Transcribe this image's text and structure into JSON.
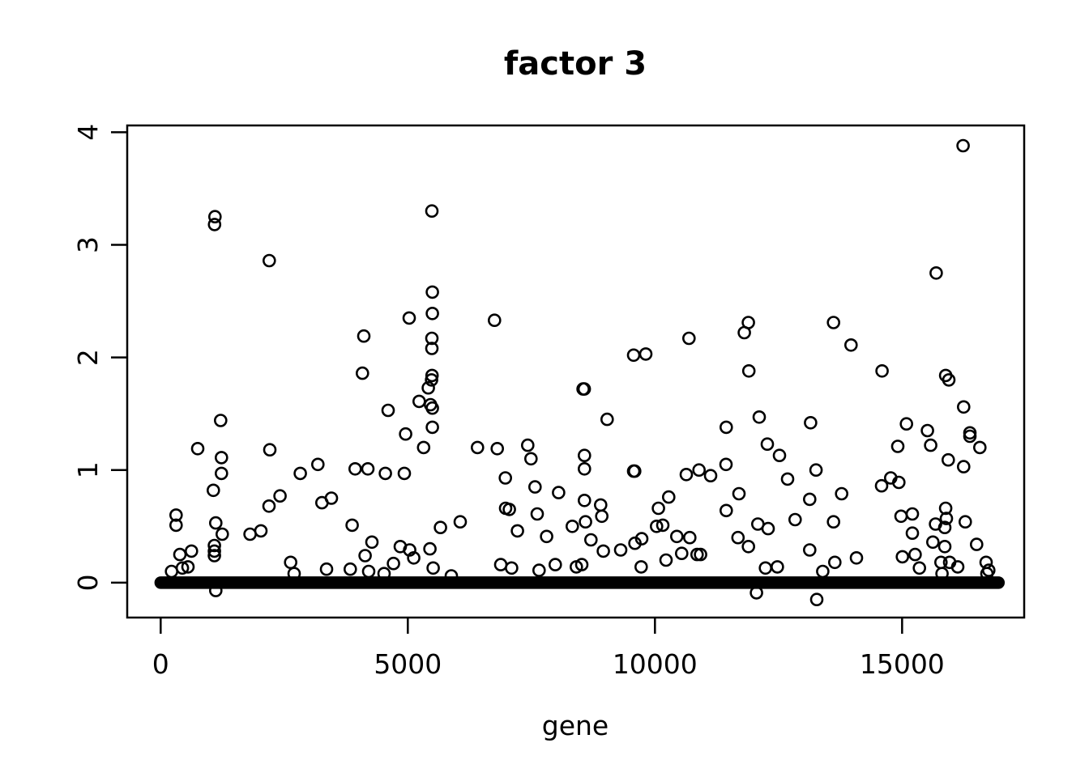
{
  "page": {
    "background": "#ffffff",
    "foreground": "#000000"
  },
  "chart_data": {
    "type": "scatter",
    "title": "factor 3",
    "xlabel": "gene",
    "ylabel": "",
    "grid": false,
    "legend": "none",
    "marker": {
      "shape": "open-circle",
      "color": "#000000",
      "radius_px": 7
    },
    "x_ticks": [
      0,
      5000,
      10000,
      15000
    ],
    "y_ticks": [
      0,
      1,
      2,
      3,
      4
    ],
    "xlim": [
      -677,
      17470
    ],
    "ylim": [
      -0.31,
      4.06
    ],
    "baseline_band": {
      "y": 0,
      "x_start": 1,
      "x_end": 16950,
      "description": "dense overlapping points at factor ~0 spanning nearly all genes"
    },
    "points": [
      [
        220,
        0.1
      ],
      [
        311,
        0.6
      ],
      [
        311,
        0.51
      ],
      [
        389,
        0.25
      ],
      [
        440,
        0.13
      ],
      [
        552,
        0.14
      ],
      [
        623,
        0.28
      ],
      [
        749,
        1.19
      ],
      [
        1065,
        0.82
      ],
      [
        1087,
        0.33
      ],
      [
        1087,
        0.28
      ],
      [
        1087,
        0.24
      ],
      [
        1090,
        3.18
      ],
      [
        1098,
        3.25
      ],
      [
        1115,
        0.53
      ],
      [
        1115,
        -0.07
      ],
      [
        1213,
        1.44
      ],
      [
        1230,
        1.11
      ],
      [
        1230,
        0.97
      ],
      [
        1246,
        0.43
      ],
      [
        1808,
        0.43
      ],
      [
        2028,
        0.46
      ],
      [
        2192,
        0.68
      ],
      [
        2196,
        2.86
      ],
      [
        2208,
        1.18
      ],
      [
        2415,
        0.77
      ],
      [
        2630,
        0.18
      ],
      [
        2700,
        0.08
      ],
      [
        2825,
        0.97
      ],
      [
        3180,
        1.05
      ],
      [
        3262,
        0.71
      ],
      [
        3356,
        0.12
      ],
      [
        3454,
        0.75
      ],
      [
        3836,
        0.12
      ],
      [
        3874,
        0.51
      ],
      [
        3934,
        1.01
      ],
      [
        4082,
        1.86
      ],
      [
        4110,
        2.19
      ],
      [
        4136,
        0.24
      ],
      [
        4192,
        1.01
      ],
      [
        4208,
        0.1
      ],
      [
        4273,
        0.36
      ],
      [
        4519,
        0.08
      ],
      [
        4546,
        0.97
      ],
      [
        4601,
        1.53
      ],
      [
        4710,
        0.17
      ],
      [
        4847,
        0.32
      ],
      [
        4929,
        0.97
      ],
      [
        4956,
        1.32
      ],
      [
        5027,
        2.35
      ],
      [
        5037,
        0.29
      ],
      [
        5120,
        0.22
      ],
      [
        5229,
        1.61
      ],
      [
        5320,
        1.2
      ],
      [
        5415,
        1.73
      ],
      [
        5448,
        0.3
      ],
      [
        5459,
        1.58
      ],
      [
        5481,
        1.8
      ],
      [
        5487,
        3.3
      ],
      [
        5487,
        2.17
      ],
      [
        5487,
        2.08
      ],
      [
        5490,
        1.84
      ],
      [
        5497,
        2.58
      ],
      [
        5497,
        2.39
      ],
      [
        5497,
        1.55
      ],
      [
        5497,
        1.38
      ],
      [
        5513,
        0.13
      ],
      [
        5661,
        0.49
      ],
      [
        5880,
        0.06
      ],
      [
        6060,
        0.54
      ],
      [
        6410,
        1.2
      ],
      [
        6754,
        2.33
      ],
      [
        6809,
        1.19
      ],
      [
        6880,
        0.16
      ],
      [
        6973,
        0.93
      ],
      [
        6978,
        0.66
      ],
      [
        7054,
        0.65
      ],
      [
        7099,
        0.13
      ],
      [
        7218,
        0.46
      ],
      [
        7426,
        1.22
      ],
      [
        7492,
        1.1
      ],
      [
        7574,
        0.85
      ],
      [
        7618,
        0.61
      ],
      [
        7656,
        0.11
      ],
      [
        7808,
        0.41
      ],
      [
        7984,
        0.16
      ],
      [
        8050,
        0.8
      ],
      [
        8328,
        0.5
      ],
      [
        8410,
        0.14
      ],
      [
        8519,
        0.16
      ],
      [
        8546,
        1.72
      ],
      [
        8570,
        1.72
      ],
      [
        8574,
        1.13
      ],
      [
        8574,
        1.01
      ],
      [
        8574,
        0.73
      ],
      [
        8595,
        0.54
      ],
      [
        8705,
        0.38
      ],
      [
        8902,
        0.69
      ],
      [
        8924,
        0.59
      ],
      [
        8956,
        0.28
      ],
      [
        9033,
        1.45
      ],
      [
        9307,
        0.29
      ],
      [
        9568,
        2.02
      ],
      [
        9568,
        0.99
      ],
      [
        9590,
        0.99
      ],
      [
        9595,
        0.35
      ],
      [
        9721,
        0.14
      ],
      [
        9732,
        0.39
      ],
      [
        9814,
        2.03
      ],
      [
        10032,
        0.5
      ],
      [
        10070,
        0.66
      ],
      [
        10159,
        0.51
      ],
      [
        10224,
        0.2
      ],
      [
        10279,
        0.76
      ],
      [
        10443,
        0.41
      ],
      [
        10541,
        0.26
      ],
      [
        10634,
        0.96
      ],
      [
        10689,
        2.17
      ],
      [
        10705,
        0.4
      ],
      [
        10852,
        0.25
      ],
      [
        10891,
        1.0
      ],
      [
        10923,
        0.25
      ],
      [
        11126,
        0.95
      ],
      [
        11438,
        1.05
      ],
      [
        11443,
        1.38
      ],
      [
        11443,
        0.64
      ],
      [
        11680,
        0.4
      ],
      [
        11700,
        0.79
      ],
      [
        11808,
        2.22
      ],
      [
        11890,
        2.31
      ],
      [
        11891,
        0.32
      ],
      [
        11900,
        1.88
      ],
      [
        12054,
        -0.09
      ],
      [
        12082,
        0.52
      ],
      [
        12110,
        1.47
      ],
      [
        12235,
        0.13
      ],
      [
        12274,
        1.23
      ],
      [
        12290,
        0.48
      ],
      [
        12476,
        0.14
      ],
      [
        12520,
        1.13
      ],
      [
        12684,
        0.92
      ],
      [
        12836,
        0.56
      ],
      [
        13131,
        0.74
      ],
      [
        13131,
        0.29
      ],
      [
        13148,
        1.42
      ],
      [
        13258,
        1.0
      ],
      [
        13274,
        -0.15
      ],
      [
        13394,
        0.1
      ],
      [
        13612,
        2.31
      ],
      [
        13612,
        0.54
      ],
      [
        13639,
        0.18
      ],
      [
        13776,
        0.79
      ],
      [
        13967,
        2.11
      ],
      [
        14077,
        0.22
      ],
      [
        14585,
        0.86
      ],
      [
        14595,
        1.88
      ],
      [
        14770,
        0.93
      ],
      [
        14913,
        1.21
      ],
      [
        14934,
        0.89
      ],
      [
        14979,
        0.59
      ],
      [
        15006,
        0.23
      ],
      [
        15088,
        1.41
      ],
      [
        15208,
        0.61
      ],
      [
        15208,
        0.44
      ],
      [
        15263,
        0.25
      ],
      [
        15350,
        0.13
      ],
      [
        15513,
        1.35
      ],
      [
        15579,
        1.22
      ],
      [
        15623,
        0.36
      ],
      [
        15677,
        0.52
      ],
      [
        15689,
        2.75
      ],
      [
        15787,
        0.18
      ],
      [
        15808,
        0.08
      ],
      [
        15864,
        0.49
      ],
      [
        15864,
        0.32
      ],
      [
        15881,
        1.84
      ],
      [
        15881,
        0.66
      ],
      [
        15897,
        0.57
      ],
      [
        15934,
        1.09
      ],
      [
        15946,
        1.8
      ],
      [
        15962,
        0.18
      ],
      [
        16126,
        0.14
      ],
      [
        16234,
        3.88
      ],
      [
        16246,
        1.56
      ],
      [
        16246,
        1.03
      ],
      [
        16279,
        0.54
      ],
      [
        16372,
        1.33
      ],
      [
        16372,
        1.3
      ],
      [
        16508,
        0.34
      ],
      [
        16574,
        1.2
      ],
      [
        16700,
        0.18
      ],
      [
        16716,
        0.08
      ],
      [
        16754,
        0.11
      ]
    ]
  }
}
